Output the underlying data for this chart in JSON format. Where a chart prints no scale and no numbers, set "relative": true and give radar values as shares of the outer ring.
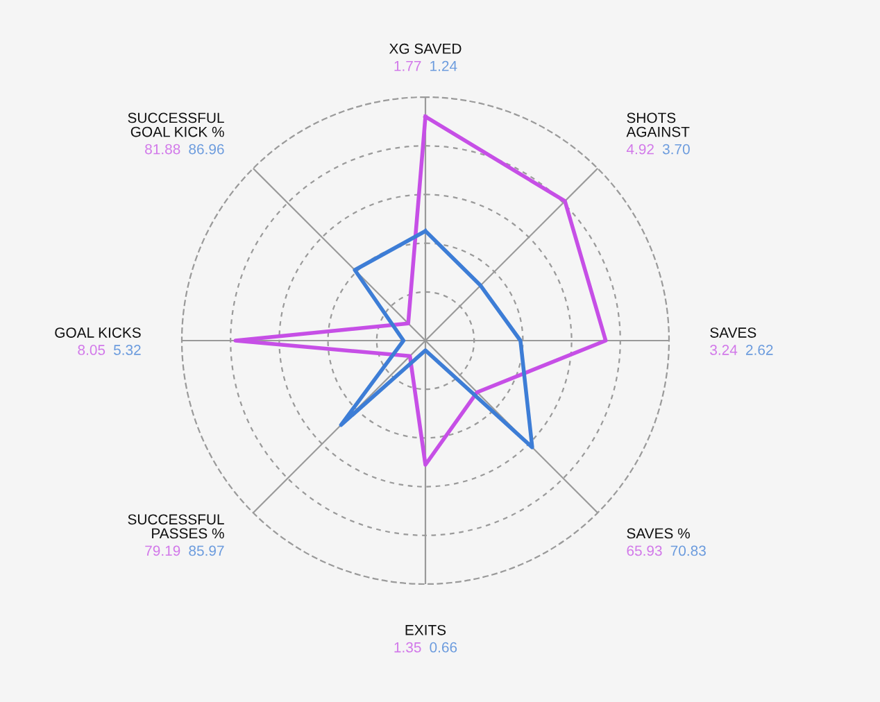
{
  "chart_data": {
    "type": "radar",
    "relative": true,
    "grid": true,
    "categories": [
      "XG SAVED",
      "SHOTS\nAGAINST",
      "SAVES",
      "SAVES %",
      "EXITS",
      "SUCCESSFUL\nPASSES %",
      "GOAL KICKS",
      "SUCCESSFUL\nGOAL KICK %"
    ],
    "series": [
      {
        "color": "#c64fe6",
        "values": [
          0.92,
          0.81,
          0.74,
          0.3,
          0.51,
          0.09,
          0.78,
          0.1
        ]
      },
      {
        "color": "#3d7dd6",
        "values": [
          0.45,
          0.32,
          0.39,
          0.62,
          0.04,
          0.49,
          0.09,
          0.41
        ]
      }
    ],
    "annotations": [
      "1.77",
      "1.24",
      "4.92",
      "3.70",
      "3.24",
      "2.62",
      "65.93",
      "70.83",
      "1.35",
      "0.66",
      "79.19",
      "85.97",
      "8.05",
      "5.32",
      "81.88",
      "86.96"
    ]
  }
}
